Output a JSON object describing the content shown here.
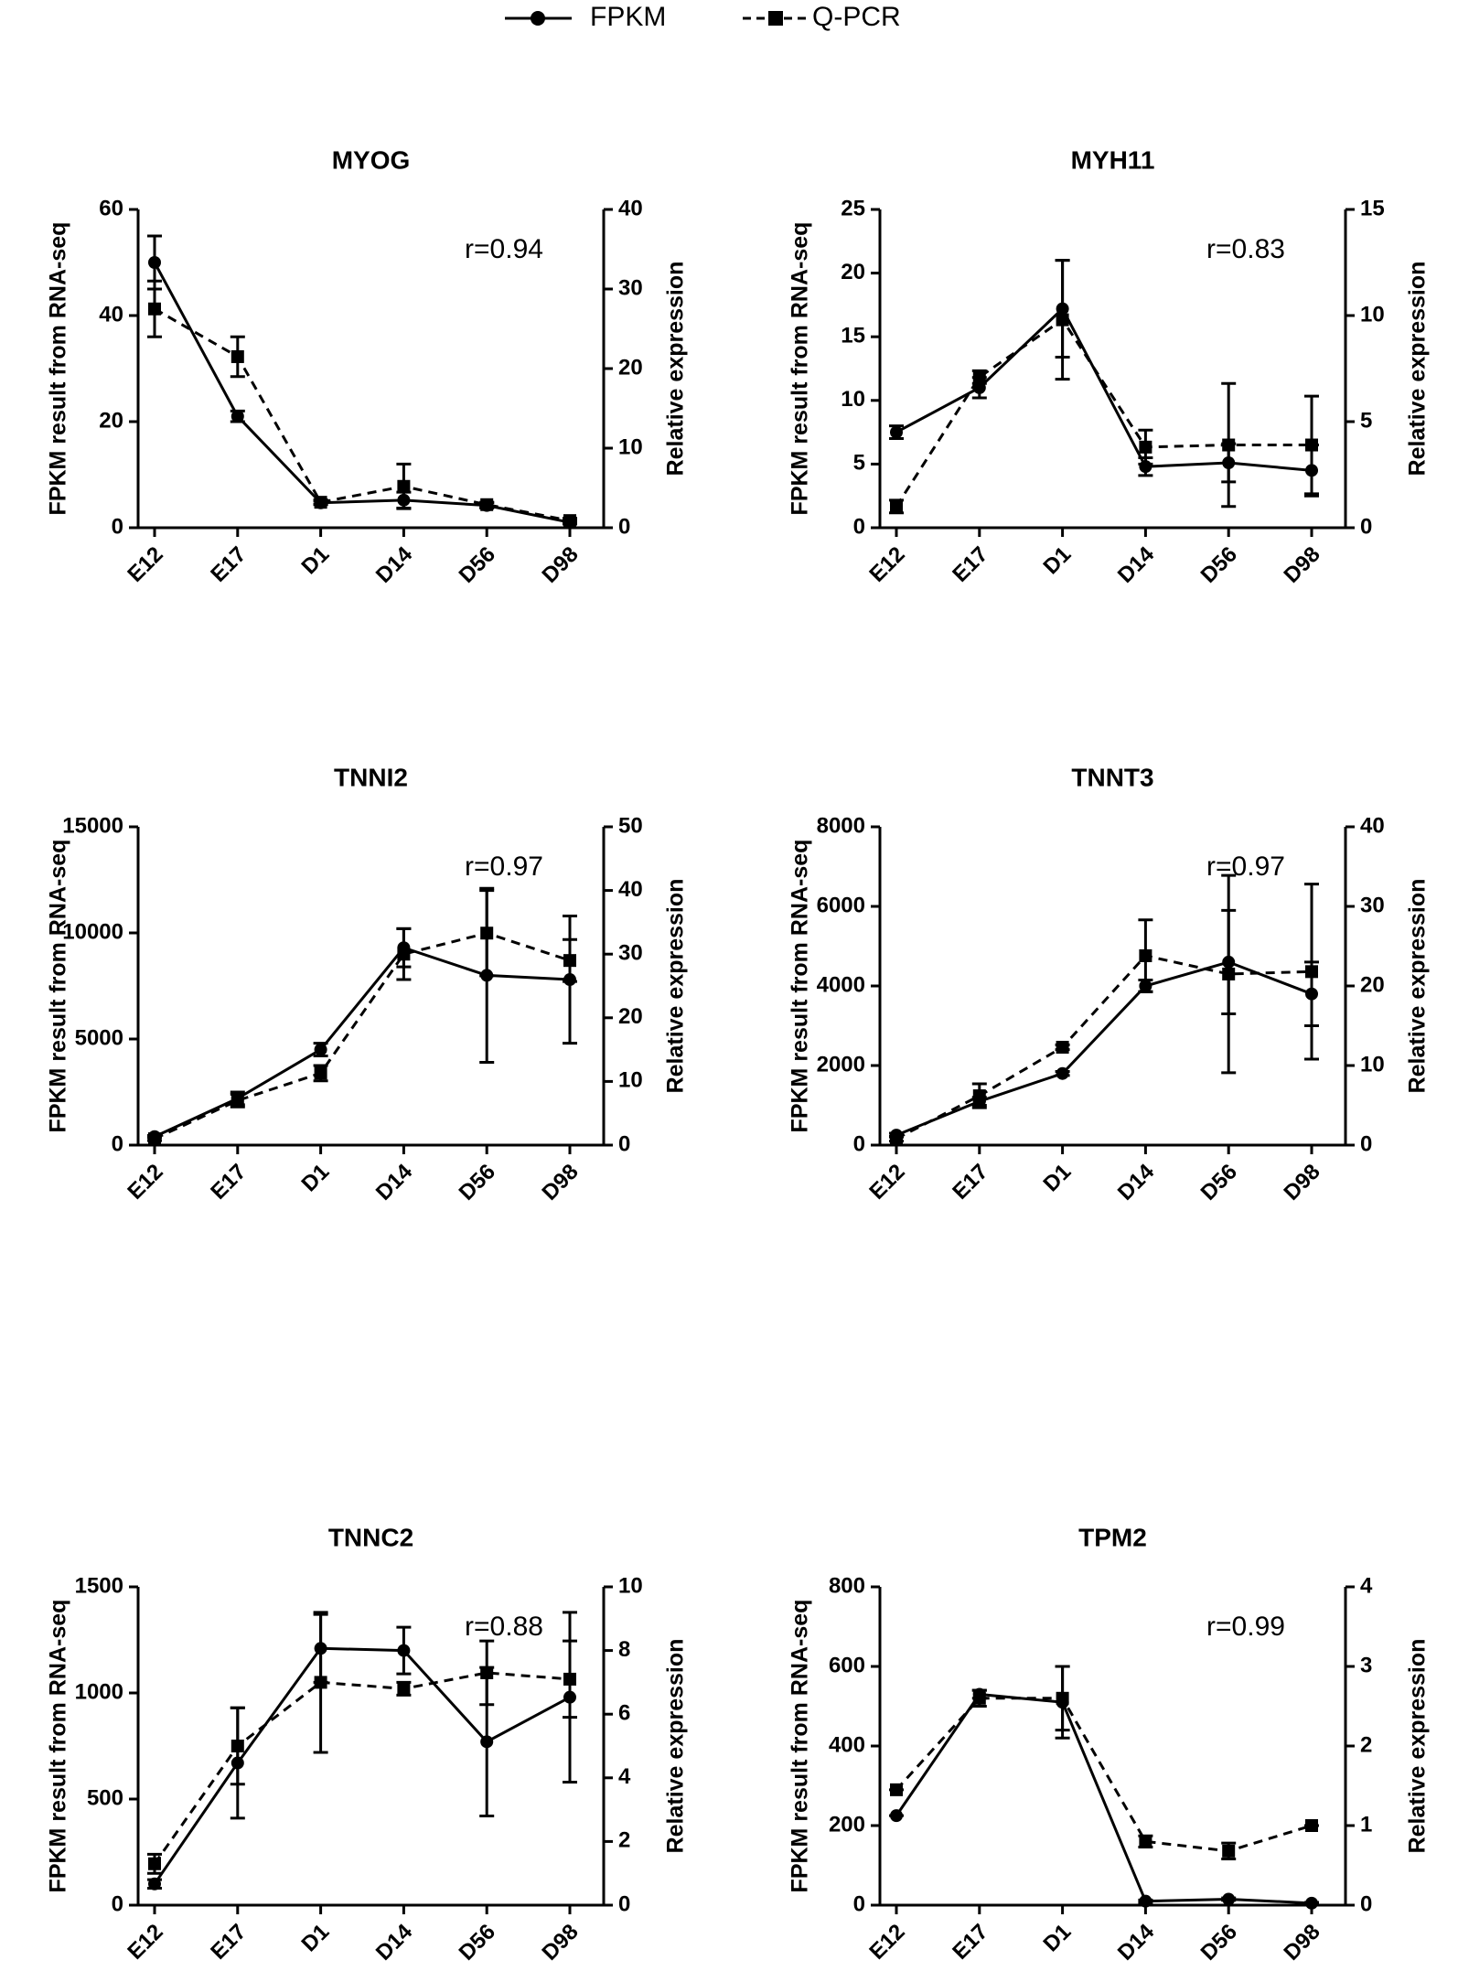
{
  "chart_data": [
    {
      "type": "line",
      "title": "MYOG",
      "annotation": "r=0.94",
      "categories": [
        "E12",
        "E17",
        "D1",
        "D14",
        "D56",
        "D98"
      ],
      "y_label": "FPKM result from RNA-seq",
      "y2_label": "Relative expression",
      "ylim": [
        0,
        60
      ],
      "yticks": [
        0,
        20,
        40,
        60
      ],
      "y2lim": [
        0,
        40
      ],
      "y2ticks": [
        0,
        10,
        20,
        30,
        40
      ],
      "series": [
        {
          "name": "FPKM",
          "color": "#000000",
          "marker": "circle",
          "linestyle": "solid",
          "values": [
            50,
            21,
            4.7,
            5.2,
            4.2,
            1
          ],
          "errors": [
            5,
            1,
            0.3,
            1.5,
            0.5,
            0.3
          ]
        },
        {
          "name": "Q-PCR",
          "color": "#000000",
          "marker": "square",
          "linestyle": "dashed",
          "axis": "y2",
          "values": [
            27.5,
            21.5,
            3.2,
            5.2,
            2.9,
            0.9
          ],
          "errors": [
            3.5,
            2.5,
            0.3,
            2.8,
            0.3,
            0.3
          ]
        }
      ]
    },
    {
      "type": "line",
      "title": "MYH11",
      "annotation": "r=0.83",
      "categories": [
        "E12",
        "E17",
        "D1",
        "D14",
        "D56",
        "D98"
      ],
      "y_label": "FPKM result from RNA-seq",
      "y2_label": "Relative expression",
      "ylim": [
        0,
        25
      ],
      "yticks": [
        0,
        5,
        10,
        15,
        20,
        25
      ],
      "y2lim": [
        0,
        15
      ],
      "y2ticks": [
        0,
        5,
        10,
        15
      ],
      "series": [
        {
          "name": "FPKM",
          "color": "#000000",
          "marker": "circle",
          "linestyle": "solid",
          "values": [
            7.5,
            11,
            17.2,
            4.8,
            5.1,
            4.5
          ],
          "errors": [
            0.5,
            0.8,
            3.8,
            0.7,
            1.5,
            2
          ]
        },
        {
          "name": "Q-PCR",
          "color": "#000000",
          "marker": "square",
          "linestyle": "dashed",
          "axis": "y2",
          "values": [
            1.0,
            7.1,
            9.8,
            3.8,
            3.9,
            3.9
          ],
          "errors": [
            0.3,
            0.3,
            2.8,
            0.8,
            2.9,
            2.3
          ]
        }
      ]
    },
    {
      "type": "line",
      "title": "TNNI2",
      "annotation": "r=0.97",
      "categories": [
        "E12",
        "E17",
        "D1",
        "D14",
        "D56",
        "D98"
      ],
      "y_label": "FPKM result from RNA-seq",
      "y2_label": "Relative expression",
      "ylim": [
        0,
        15000
      ],
      "yticks": [
        0,
        5000,
        10000,
        15000
      ],
      "y2lim": [
        0,
        50
      ],
      "y2ticks": [
        0,
        10,
        20,
        30,
        40,
        50
      ],
      "series": [
        {
          "name": "FPKM",
          "color": "#000000",
          "marker": "circle",
          "linestyle": "solid",
          "values": [
            400,
            2200,
            4500,
            9300,
            8000,
            7800
          ],
          "errors": [
            50,
            300,
            300,
            900,
            4100,
            3000
          ]
        },
        {
          "name": "Q-PCR",
          "color": "#000000",
          "marker": "square",
          "linestyle": "dashed",
          "axis": "y2",
          "values": [
            1,
            7,
            11.3,
            30,
            33.3,
            29
          ],
          "errors": [
            0.3,
            1,
            1.2,
            4,
            6.7,
            3.3
          ]
        }
      ]
    },
    {
      "type": "line",
      "title": "TNNT3",
      "annotation": "r=0.97",
      "categories": [
        "E12",
        "E17",
        "D1",
        "D14",
        "D56",
        "D98"
      ],
      "y_label": "FPKM result from RNA-seq",
      "y2_label": "Relative expression",
      "ylim": [
        0,
        8000
      ],
      "yticks": [
        0,
        2000,
        4000,
        6000,
        8000
      ],
      "y2lim": [
        0,
        40
      ],
      "y2ticks": [
        0,
        10,
        20,
        30,
        40
      ],
      "series": [
        {
          "name": "FPKM",
          "color": "#000000",
          "marker": "circle",
          "linestyle": "solid",
          "values": [
            250,
            1100,
            1800,
            4000,
            4600,
            3800
          ],
          "errors": [
            50,
            100,
            50,
            150,
            1300,
            800
          ]
        },
        {
          "name": "Q-PCR",
          "color": "#000000",
          "marker": "square",
          "linestyle": "dashed",
          "axis": "y2",
          "values": [
            0.8,
            6.2,
            12.3,
            23.8,
            21.5,
            21.8
          ],
          "errors": [
            0.3,
            1.5,
            0.3,
            4.5,
            12.4,
            11
          ]
        }
      ]
    },
    {
      "type": "line",
      "title": "TNNC2",
      "annotation": "r=0.88",
      "categories": [
        "E12",
        "E17",
        "D1",
        "D14",
        "D56",
        "D98"
      ],
      "y_label": "FPKM result from RNA-seq",
      "y2_label": "Relative expression",
      "ylim": [
        0,
        1500
      ],
      "yticks": [
        0,
        500,
        1000,
        1500
      ],
      "y2lim": [
        0,
        10
      ],
      "y2ticks": [
        0,
        2,
        4,
        6,
        8,
        10
      ],
      "series": [
        {
          "name": "FPKM",
          "color": "#000000",
          "marker": "circle",
          "linestyle": "solid",
          "values": [
            100,
            670,
            1210,
            1200,
            770,
            980
          ],
          "errors": [
            20,
            260,
            160,
            110,
            350,
            400
          ]
        },
        {
          "name": "Q-PCR",
          "color": "#000000",
          "marker": "square",
          "linestyle": "dashed",
          "axis": "y2",
          "values": [
            1.3,
            5.0,
            7.0,
            6.8,
            7.3,
            7.1
          ],
          "errors": [
            0.3,
            1.2,
            2.2,
            0.2,
            1.0,
            1.2
          ]
        }
      ]
    },
    {
      "type": "line",
      "title": "TPM2",
      "annotation": "r=0.99",
      "categories": [
        "E12",
        "E17",
        "D1",
        "D14",
        "D56",
        "D98"
      ],
      "y_label": "FPKM result from RNA-seq",
      "y2_label": "Relative expression",
      "ylim": [
        0,
        800
      ],
      "yticks": [
        0,
        200,
        400,
        600,
        800
      ],
      "y2lim": [
        0,
        4
      ],
      "y2ticks": [
        0,
        1,
        2,
        3,
        4
      ],
      "series": [
        {
          "name": "FPKM",
          "color": "#000000",
          "marker": "circle",
          "linestyle": "solid",
          "values": [
            225,
            530,
            510,
            10,
            15,
            5
          ],
          "errors": [
            0,
            10,
            90,
            3,
            3,
            2
          ]
        },
        {
          "name": "Q-PCR",
          "color": "#000000",
          "marker": "square",
          "linestyle": "dashed",
          "axis": "y2",
          "values": [
            1.45,
            2.6,
            2.6,
            0.8,
            0.68,
            1.0
          ],
          "errors": [
            0,
            0.1,
            0.4,
            0.07,
            0.1,
            0
          ]
        }
      ]
    }
  ]
}
